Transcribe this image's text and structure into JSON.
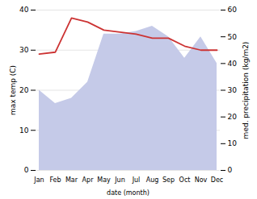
{
  "chart_data": {
    "type": "line",
    "categories": [
      "Jan",
      "Feb",
      "Mar",
      "Apr",
      "May",
      "Jun",
      "Jul",
      "Aug",
      "Sep",
      "Oct",
      "Nov",
      "Dec"
    ],
    "xlabel": "date (month)",
    "ylabel": "max temp (C)",
    "y2label": "med. precipitation (kg/m2)",
    "series": [
      {
        "type": "area",
        "axis": "y2",
        "color": "#c5cae8",
        "values": [
          30,
          25,
          27,
          33,
          51,
          51,
          52,
          54,
          50,
          42,
          50,
          40
        ]
      },
      {
        "type": "line",
        "color": "#cc3333",
        "values": [
          29,
          29.5,
          38,
          37,
          35,
          34.5,
          34,
          33,
          33,
          31,
          30,
          30
        ]
      }
    ],
    "ylim": [
      0,
      40
    ],
    "yticks": [
      0,
      10,
      20,
      30,
      40
    ],
    "y2lim": [
      0,
      60
    ],
    "y2ticks": [
      0,
      10,
      20,
      30,
      40,
      50,
      60
    ],
    "grid": true
  }
}
